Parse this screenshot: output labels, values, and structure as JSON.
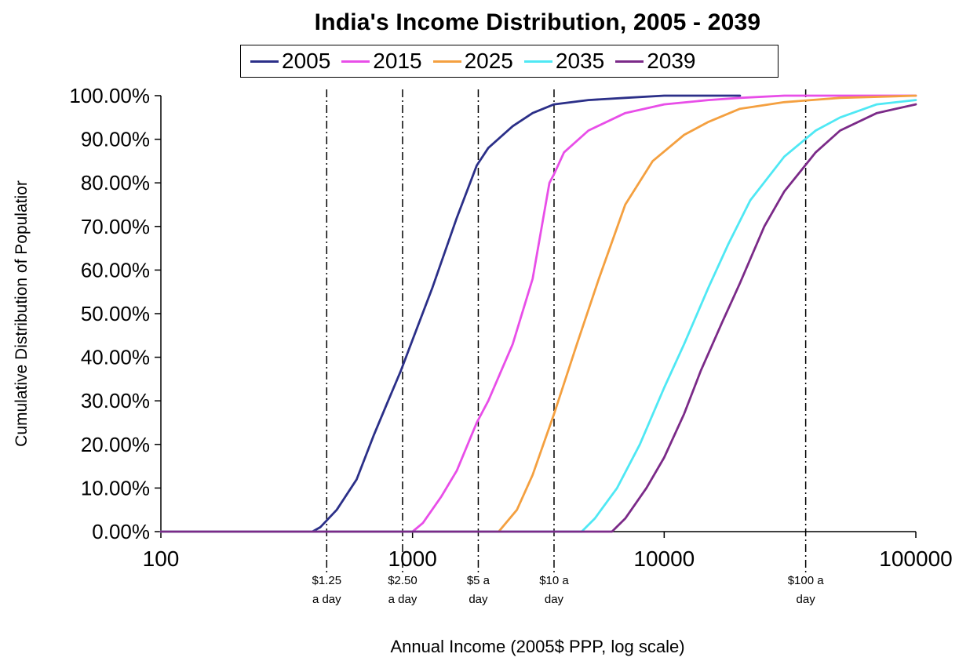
{
  "chart_data": {
    "type": "line",
    "title": "India's Income Distribution, 2005 - 2039",
    "xlabel": "Annual Income (2005$ PPP, log scale)",
    "ylabel": "Cumulative Distribution of Populatior",
    "x_scale": "log",
    "xlim": [
      100,
      100000
    ],
    "ylim": [
      0,
      1
    ],
    "x_ticks": [
      100,
      1000,
      10000,
      100000
    ],
    "x_tick_labels": [
      "100",
      "1000",
      "10000",
      "100000"
    ],
    "y_ticks": [
      0,
      0.1,
      0.2,
      0.3,
      0.4,
      0.5,
      0.6,
      0.7,
      0.8,
      0.9,
      1.0
    ],
    "y_tick_labels": [
      "0.00%",
      "10.00%",
      "20.00%",
      "30.00%",
      "40.00%",
      "50.00%",
      "60.00%",
      "70.00%",
      "80.00%",
      "90.00%",
      "100.00%"
    ],
    "grid": false,
    "legend_position": "top-center",
    "reference_lines": [
      {
        "x": 456,
        "label_lines": [
          "$1.25",
          "a day"
        ]
      },
      {
        "x": 913,
        "label_lines": [
          "$2.50",
          "a day"
        ]
      },
      {
        "x": 1825,
        "label_lines": [
          "$5 a",
          "day"
        ]
      },
      {
        "x": 3650,
        "label_lines": [
          "$10 a",
          "day"
        ]
      },
      {
        "x": 36500,
        "label_lines": [
          "$100 a",
          "day"
        ]
      }
    ],
    "series": [
      {
        "name": "2005",
        "color": "#2b2f88",
        "points": [
          [
            100,
            0
          ],
          [
            400,
            0
          ],
          [
            430,
            0.01
          ],
          [
            500,
            0.05
          ],
          [
            600,
            0.12
          ],
          [
            700,
            0.22
          ],
          [
            800,
            0.3
          ],
          [
            900,
            0.37
          ],
          [
            1000,
            0.44
          ],
          [
            1200,
            0.56
          ],
          [
            1500,
            0.72
          ],
          [
            1800,
            0.84
          ],
          [
            2000,
            0.88
          ],
          [
            2500,
            0.93
          ],
          [
            3000,
            0.96
          ],
          [
            3650,
            0.98
          ],
          [
            5000,
            0.99
          ],
          [
            7000,
            0.995
          ],
          [
            10000,
            1.0
          ],
          [
            20000,
            1.0
          ]
        ]
      },
      {
        "name": "2015",
        "color": "#e84ee8",
        "points": [
          [
            100,
            0
          ],
          [
            1000,
            0
          ],
          [
            1100,
            0.02
          ],
          [
            1300,
            0.08
          ],
          [
            1500,
            0.14
          ],
          [
            1800,
            0.25
          ],
          [
            2000,
            0.3
          ],
          [
            2500,
            0.43
          ],
          [
            3000,
            0.58
          ],
          [
            3500,
            0.8
          ],
          [
            3650,
            0.82
          ],
          [
            4000,
            0.87
          ],
          [
            5000,
            0.92
          ],
          [
            7000,
            0.96
          ],
          [
            10000,
            0.98
          ],
          [
            15000,
            0.99
          ],
          [
            20000,
            0.995
          ],
          [
            30000,
            1.0
          ],
          [
            100000,
            1.0
          ]
        ]
      },
      {
        "name": "2025",
        "color": "#f4a040",
        "points": [
          [
            100,
            0
          ],
          [
            2200,
            0
          ],
          [
            2600,
            0.05
          ],
          [
            3000,
            0.13
          ],
          [
            3650,
            0.27
          ],
          [
            4500,
            0.43
          ],
          [
            5500,
            0.58
          ],
          [
            7000,
            0.75
          ],
          [
            9000,
            0.85
          ],
          [
            12000,
            0.91
          ],
          [
            15000,
            0.94
          ],
          [
            20000,
            0.97
          ],
          [
            30000,
            0.985
          ],
          [
            50000,
            0.995
          ],
          [
            100000,
            1.0
          ]
        ]
      },
      {
        "name": "2035",
        "color": "#4fe8f4",
        "points": [
          [
            100,
            0
          ],
          [
            4700,
            0
          ],
          [
            5300,
            0.03
          ],
          [
            6500,
            0.1
          ],
          [
            8000,
            0.2
          ],
          [
            10000,
            0.33
          ],
          [
            12000,
            0.43
          ],
          [
            15000,
            0.56
          ],
          [
            18000,
            0.66
          ],
          [
            22000,
            0.76
          ],
          [
            30000,
            0.86
          ],
          [
            40000,
            0.92
          ],
          [
            50000,
            0.95
          ],
          [
            70000,
            0.98
          ],
          [
            100000,
            0.99
          ]
        ]
      },
      {
        "name": "2039",
        "color": "#7b2a88",
        "points": [
          [
            100,
            0
          ],
          [
            6200,
            0
          ],
          [
            7000,
            0.03
          ],
          [
            8500,
            0.1
          ],
          [
            10000,
            0.17
          ],
          [
            12000,
            0.27
          ],
          [
            14000,
            0.37
          ],
          [
            17000,
            0.48
          ],
          [
            20000,
            0.57
          ],
          [
            25000,
            0.7
          ],
          [
            30000,
            0.78
          ],
          [
            40000,
            0.87
          ],
          [
            50000,
            0.92
          ],
          [
            70000,
            0.96
          ],
          [
            100000,
            0.98
          ]
        ]
      }
    ]
  }
}
